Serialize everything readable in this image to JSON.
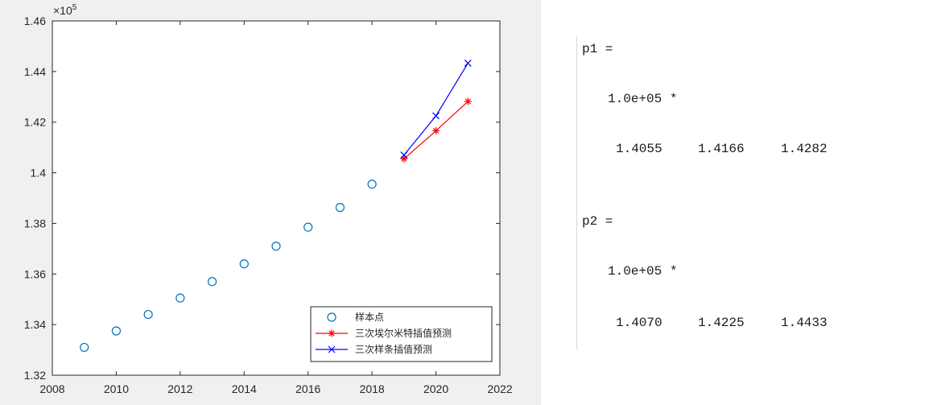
{
  "chart_data": {
    "type": "line",
    "exponent_label": "×10",
    "exponent_power": "5",
    "xlim": [
      2008,
      2022
    ],
    "ylim": [
      1.32,
      1.46
    ],
    "xticks": [
      "2008",
      "2010",
      "2012",
      "2014",
      "2016",
      "2018",
      "2020",
      "2022"
    ],
    "yticks": [
      "1.32",
      "1.34",
      "1.36",
      "1.38",
      "1.4",
      "1.42",
      "1.44",
      "1.46"
    ],
    "grid": false,
    "legend_position": "bottom-right",
    "series": [
      {
        "name": "样本点",
        "marker": "circle",
        "line": false,
        "color": "#0072bd",
        "x": [
          2009,
          2010,
          2011,
          2012,
          2013,
          2014,
          2015,
          2016,
          2017,
          2018
        ],
        "y": [
          1.331,
          1.3375,
          1.344,
          1.3505,
          1.357,
          1.364,
          1.371,
          1.3785,
          1.3863,
          1.3955
        ]
      },
      {
        "name": "三次埃尔米特插值预测",
        "marker": "star",
        "line": true,
        "color": "#ff0000",
        "x": [
          2019,
          2020,
          2021
        ],
        "y": [
          1.4055,
          1.4166,
          1.4282
        ]
      },
      {
        "name": "三次样条插值预测",
        "marker": "x",
        "line": true,
        "color": "#0000ff",
        "x": [
          2019,
          2020,
          2021
        ],
        "y": [
          1.407,
          1.4225,
          1.4433
        ]
      }
    ]
  },
  "console": {
    "p1_label": "p1 =",
    "p1_scale": "1.0e+05 *",
    "p1_values": [
      "1.4055",
      "1.4166",
      "1.4282"
    ],
    "p2_label": "p2 =",
    "p2_scale": "1.0e+05 *",
    "p2_values": [
      "1.4070",
      "1.4225",
      "1.4433"
    ]
  }
}
